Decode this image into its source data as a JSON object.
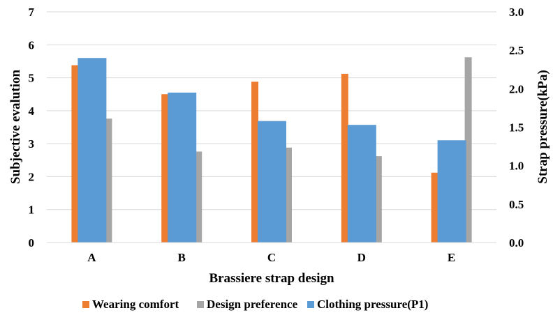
{
  "chart_data": {
    "type": "bar",
    "categories": [
      "A",
      "B",
      "C",
      "D",
      "E"
    ],
    "xlabel": "Brassiere strap design",
    "ylabel": "Subjective evalution",
    "y2label": "Strap pressure(kPa)",
    "ylim": [
      0,
      7
    ],
    "y2lim": [
      0,
      3.0
    ],
    "yticks": [
      "0",
      "1",
      "2",
      "3",
      "4",
      "5",
      "6",
      "7"
    ],
    "y2ticks": [
      "0.0",
      "0.5",
      "1.0",
      "1.5",
      "2.0",
      "2.5",
      "3.0"
    ],
    "grid": true,
    "legend_position": "bottom",
    "series": [
      {
        "name": "Wearing comfort",
        "axis": "left",
        "color": "#ED7D31",
        "values": [
          5.38,
          4.5,
          4.88,
          5.12,
          2.12
        ]
      },
      {
        "name": "Design preference",
        "axis": "left",
        "color": "#A5A5A5",
        "values": [
          3.76,
          2.76,
          2.88,
          2.62,
          5.62
        ]
      },
      {
        "name": "Clothing pressure(P1)",
        "axis": "right",
        "color": "#5B9BD5",
        "values": [
          2.4,
          1.95,
          1.58,
          1.53,
          1.33
        ]
      }
    ]
  }
}
